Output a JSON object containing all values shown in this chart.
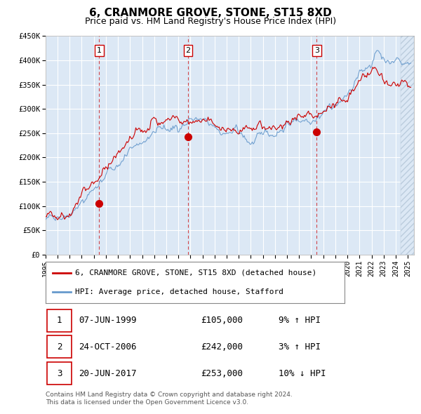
{
  "title": "6, CRANMORE GROVE, STONE, ST15 8XD",
  "subtitle": "Price paid vs. HM Land Registry's House Price Index (HPI)",
  "ylim": [
    0,
    450000
  ],
  "yticks": [
    0,
    50000,
    100000,
    150000,
    200000,
    250000,
    300000,
    350000,
    400000,
    450000
  ],
  "ytick_labels": [
    "£0",
    "£50K",
    "£100K",
    "£150K",
    "£200K",
    "£250K",
    "£300K",
    "£350K",
    "£400K",
    "£450K"
  ],
  "xlim_start": 1995.0,
  "xlim_end": 2025.5,
  "x_tick_years": [
    1995,
    1996,
    1997,
    1998,
    1999,
    2000,
    2001,
    2002,
    2003,
    2004,
    2005,
    2006,
    2007,
    2008,
    2009,
    2010,
    2011,
    2012,
    2013,
    2014,
    2015,
    2016,
    2017,
    2018,
    2019,
    2020,
    2021,
    2022,
    2023,
    2024,
    2025
  ],
  "sale_dates": [
    1999.44,
    2006.81,
    2017.46
  ],
  "sale_prices": [
    105000,
    242000,
    253000
  ],
  "vline_color": "#cc0000",
  "dot_color": "#cc0000",
  "hpi_line_color": "#6699cc",
  "price_line_color": "#cc0000",
  "bg_color": "#dce8f5",
  "grid_color": "#ffffff",
  "legend_label_red": "6, CRANMORE GROVE, STONE, ST15 8XD (detached house)",
  "legend_label_blue": "HPI: Average price, detached house, Stafford",
  "table_rows": [
    {
      "num": "1",
      "date": "07-JUN-1999",
      "price": "£105,000",
      "hpi": "9% ↑ HPI"
    },
    {
      "num": "2",
      "date": "24-OCT-2006",
      "price": "£242,000",
      "hpi": "3% ↑ HPI"
    },
    {
      "num": "3",
      "date": "20-JUN-2017",
      "price": "£253,000",
      "hpi": "10% ↓ HPI"
    }
  ],
  "footer_line1": "Contains HM Land Registry data © Crown copyright and database right 2024.",
  "footer_line2": "This data is licensed under the Open Government Licence v3.0."
}
